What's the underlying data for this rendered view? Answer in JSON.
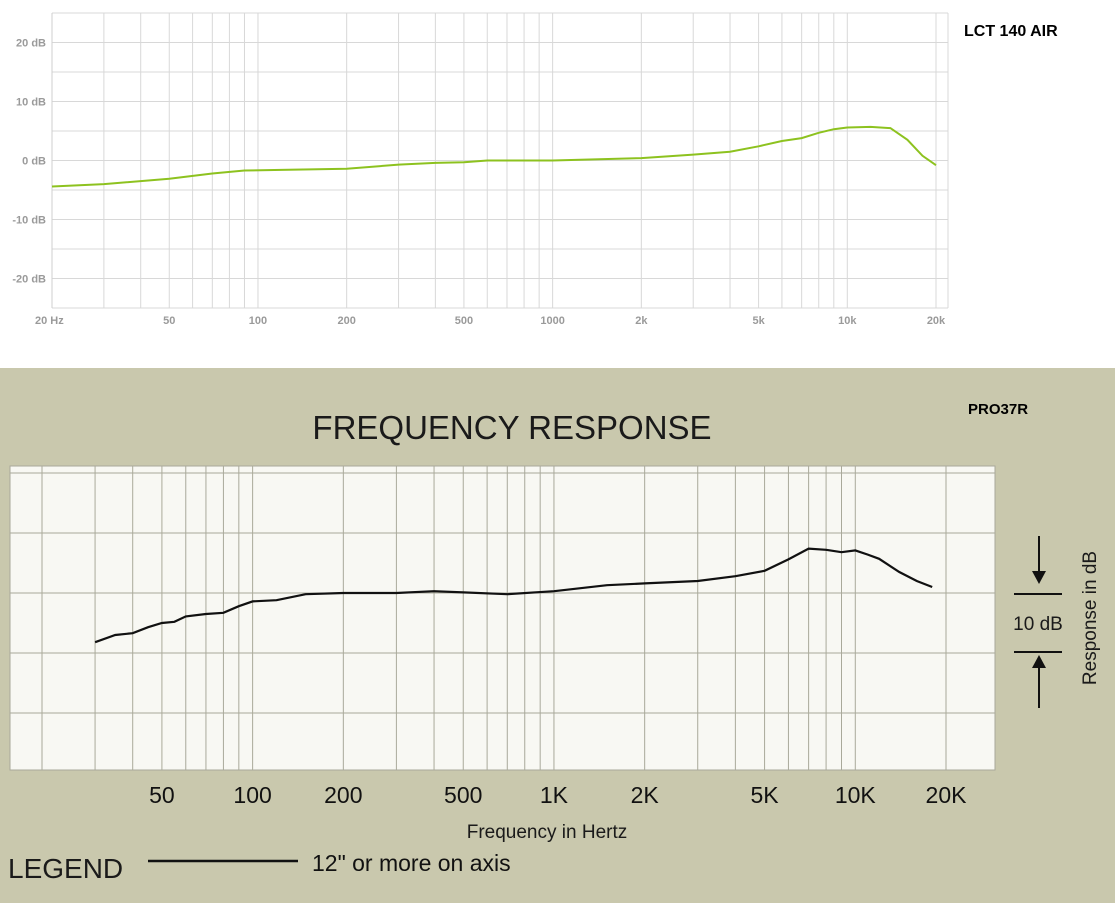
{
  "chart_data": [
    {
      "type": "line",
      "title": "LCT 140 AIR",
      "x_scale": "log",
      "xlim": [
        20,
        20000
      ],
      "ylim": [
        -25,
        25
      ],
      "grid": true,
      "line_color": "#8dc21f",
      "y_ticks": [
        {
          "v": 20,
          "label": "20 dB"
        },
        {
          "v": 10,
          "label": "10 dB"
        },
        {
          "v": 0,
          "label": "0 dB"
        },
        {
          "v": -10,
          "label": "-10 dB"
        },
        {
          "v": -20,
          "label": "-20 dB"
        }
      ],
      "x_ticks": [
        {
          "v": 20,
          "label": "20 Hz"
        },
        {
          "v": 50,
          "label": "50"
        },
        {
          "v": 100,
          "label": "100"
        },
        {
          "v": 200,
          "label": "200"
        },
        {
          "v": 500,
          "label": "500"
        },
        {
          "v": 1000,
          "label": "1000"
        },
        {
          "v": 2000,
          "label": "2k"
        },
        {
          "v": 5000,
          "label": "5k"
        },
        {
          "v": 10000,
          "label": "10k"
        },
        {
          "v": 20000,
          "label": "20k"
        }
      ],
      "series": [
        {
          "x": [
            20,
            30,
            50,
            70,
            90,
            120,
            200,
            300,
            400,
            500,
            600,
            1000,
            2000,
            3000,
            4000,
            5000,
            6000,
            7000,
            8000,
            9000,
            10000,
            12000,
            14000,
            16000,
            18000,
            20000
          ],
          "y": [
            -4.4,
            -4,
            -3.1,
            -2.2,
            -1.7,
            -1.6,
            -1.4,
            -0.7,
            -0.4,
            -0.3,
            0,
            0,
            0.4,
            1,
            1.5,
            2.4,
            3.3,
            3.8,
            4.7,
            5.3,
            5.6,
            5.7,
            5.5,
            3.5,
            0.8,
            -0.8
          ]
        }
      ]
    },
    {
      "type": "line",
      "title": "FREQUENCY RESPONSE",
      "model": "PRO37R",
      "x_scale": "log",
      "xlim": [
        20,
        30000
      ],
      "ylim": [
        -20,
        20
      ],
      "xlabel": "Frequency in Hertz",
      "ylabel": "Response in dB",
      "scale_label": "10 dB",
      "grid": true,
      "line_color": "#111111",
      "x_ticks": [
        {
          "v": 50,
          "label": "50"
        },
        {
          "v": 100,
          "label": "100"
        },
        {
          "v": 200,
          "label": "200"
        },
        {
          "v": 500,
          "label": "500"
        },
        {
          "v": 1000,
          "label": "1K"
        },
        {
          "v": 2000,
          "label": "2K"
        },
        {
          "v": 5000,
          "label": "5K"
        },
        {
          "v": 10000,
          "label": "10K"
        },
        {
          "v": 20000,
          "label": "20K"
        }
      ],
      "legend": {
        "label": "LEGEND",
        "entry": "12\" or more on axis"
      },
      "series": [
        {
          "name": "12\" or more on axis",
          "x": [
            30,
            35,
            40,
            45,
            50,
            55,
            60,
            70,
            80,
            90,
            100,
            120,
            150,
            200,
            300,
            400,
            500,
            700,
            1000,
            1500,
            2000,
            3000,
            4000,
            5000,
            6000,
            7000,
            8000,
            9000,
            10000,
            11000,
            12000,
            14000,
            16000,
            18000
          ],
          "y": [
            -8.2,
            -7,
            -6.7,
            -5.7,
            -5,
            -4.8,
            -3.9,
            -3.5,
            -3.3,
            -2.2,
            -1.4,
            -1.2,
            -0.2,
            0,
            0,
            0.3,
            0.1,
            -0.2,
            0.3,
            1.3,
            1.6,
            2,
            2.8,
            3.7,
            5.6,
            7.4,
            7.2,
            6.8,
            7.1,
            6.4,
            5.7,
            3.5,
            2,
            1
          ]
        }
      ]
    }
  ]
}
